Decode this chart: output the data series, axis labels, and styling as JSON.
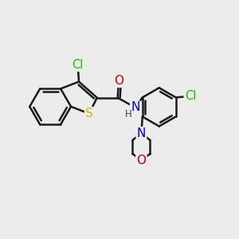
{
  "bg_color": "#ebebeb",
  "bond_color": "#1a1a1a",
  "bond_width": 1.8,
  "atom_colors": {
    "Cl": "#22bb00",
    "S": "#ccbb00",
    "N": "#0000cc",
    "O": "#cc0000",
    "C": "#1a1a1a"
  },
  "font_size": 10.5
}
